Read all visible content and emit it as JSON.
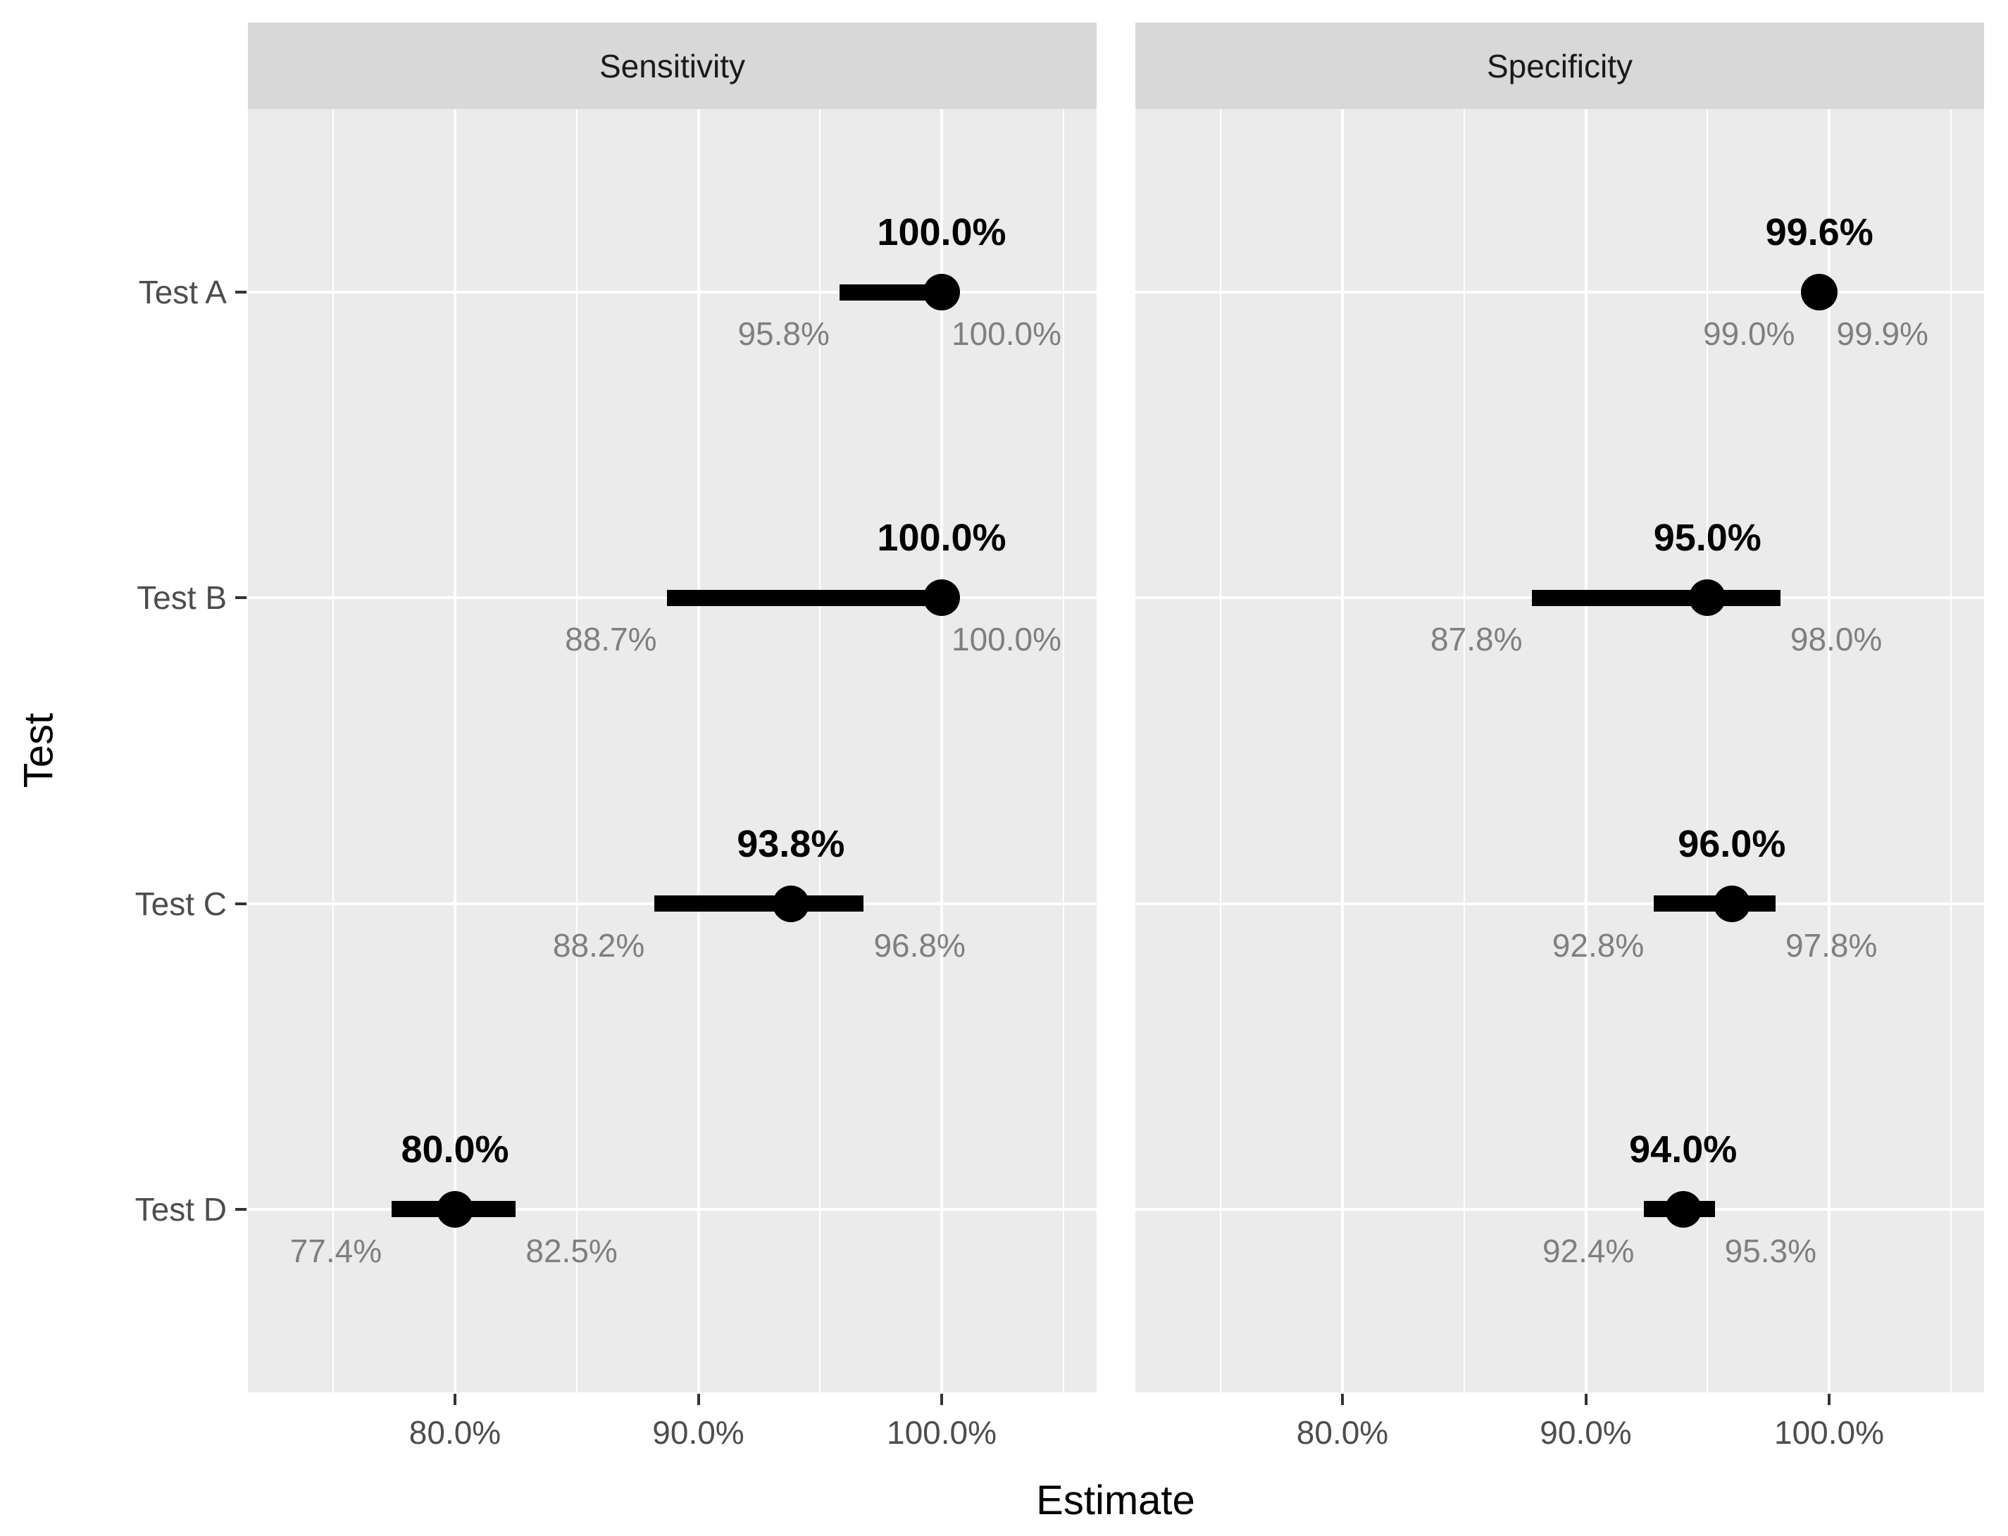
{
  "chart_data": {
    "type": "scatter",
    "subtype": "faceted-pointrange-forest-plot",
    "title": "",
    "xlabel": "Estimate",
    "ylabel": "Test",
    "categories": [
      "Test A",
      "Test B",
      "Test C",
      "Test D"
    ],
    "x_ticks": {
      "values": [
        80,
        90,
        100
      ],
      "labels": [
        "80.0%",
        "90.0%",
        "100.0%"
      ]
    },
    "x_minor_ticks": [
      75,
      85,
      95,
      105
    ],
    "xlim": [
      71.5,
      106.4
    ],
    "grid": true,
    "legend": false,
    "facets": [
      {
        "label": "Sensitivity",
        "points": [
          {
            "category": "Test A",
            "estimate": 100.0,
            "lower": 95.8,
            "upper": 100.0,
            "estimate_label": "100.0%",
            "lower_label": "95.8%",
            "upper_label": "100.0%"
          },
          {
            "category": "Test B",
            "estimate": 100.0,
            "lower": 88.7,
            "upper": 100.0,
            "estimate_label": "100.0%",
            "lower_label": "88.7%",
            "upper_label": "100.0%"
          },
          {
            "category": "Test C",
            "estimate": 93.8,
            "lower": 88.2,
            "upper": 96.8,
            "estimate_label": "93.8%",
            "lower_label": "88.2%",
            "upper_label": "96.8%"
          },
          {
            "category": "Test D",
            "estimate": 80.0,
            "lower": 77.4,
            "upper": 82.5,
            "estimate_label": "80.0%",
            "lower_label": "77.4%",
            "upper_label": "82.5%"
          }
        ]
      },
      {
        "label": "Specificity",
        "points": [
          {
            "category": "Test A",
            "estimate": 99.6,
            "lower": 99.0,
            "upper": 99.9,
            "estimate_label": "99.6%",
            "lower_label": "99.0%",
            "upper_label": "99.9%"
          },
          {
            "category": "Test B",
            "estimate": 95.0,
            "lower": 87.8,
            "upper": 98.0,
            "estimate_label": "95.0%",
            "lower_label": "87.8%",
            "upper_label": "98.0%"
          },
          {
            "category": "Test C",
            "estimate": 96.0,
            "lower": 92.8,
            "upper": 97.8,
            "estimate_label": "96.0%",
            "lower_label": "92.8%",
            "upper_label": "97.8%"
          },
          {
            "category": "Test D",
            "estimate": 94.0,
            "lower": 92.4,
            "upper": 95.3,
            "estimate_label": "94.0%",
            "lower_label": "92.4%",
            "upper_label": "95.3%"
          }
        ]
      }
    ],
    "colors": {
      "panel_bg": "#EBEBEB",
      "strip_bg": "#D8D8D8",
      "gridline": "#FFFFFF",
      "point": "#000000",
      "estimate_text": "#000000",
      "ci_text": "#7F7F7F",
      "axis_text": "#4D4D4D",
      "axis_title": "#000000",
      "tick_mark": "#333333"
    }
  }
}
